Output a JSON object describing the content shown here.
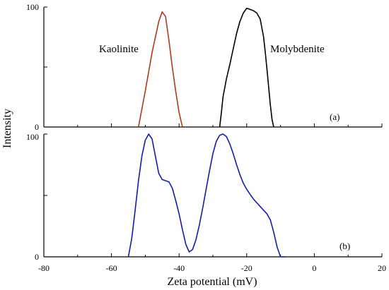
{
  "chart_data": [
    {
      "type": "line",
      "panel_label": "(a)",
      "xlim": [
        -80,
        20
      ],
      "ylim": [
        0,
        100
      ],
      "ytick_labels": [
        "0",
        "100"
      ],
      "annotations": [
        "Kaolinite",
        "Molybdenite"
      ],
      "series": [
        {
          "color": "#b03a1e",
          "x": [
            -52,
            -50,
            -48,
            -46,
            -45,
            -44,
            -43,
            -42,
            -41,
            -40,
            -39
          ],
          "y": [
            0,
            30,
            62,
            88,
            96,
            92,
            72,
            50,
            30,
            12,
            0
          ]
        },
        {
          "color": "#000000",
          "x": [
            -28,
            -27.5,
            -27,
            -26,
            -25,
            -24,
            -23,
            -22,
            -21,
            -20,
            -19,
            -18,
            -17,
            -16,
            -15,
            -14.5,
            -14,
            -13.5,
            -13,
            -12.5,
            -12
          ],
          "y": [
            0,
            12,
            25,
            40,
            52,
            65,
            78,
            88,
            95,
            99,
            98,
            97,
            95,
            90,
            75,
            62,
            48,
            33,
            18,
            6,
            0
          ]
        }
      ]
    },
    {
      "type": "line",
      "panel_label": "(b)",
      "xlim": [
        -80,
        20
      ],
      "ylim": [
        0,
        100
      ],
      "ytick_labels": [
        "0",
        "100"
      ],
      "series": [
        {
          "color": "#1a1aa8",
          "x": [
            -55,
            -54,
            -53,
            -52,
            -51,
            -50,
            -49,
            -48,
            -47,
            -46,
            -45,
            -44,
            -43,
            -42,
            -41,
            -40,
            -39,
            -38,
            -37,
            -36,
            -35,
            -34,
            -33,
            -32,
            -31,
            -30,
            -29,
            -28,
            -27,
            -26,
            -25,
            -24,
            -23,
            -22,
            -21,
            -20,
            -19,
            -18,
            -17,
            -16,
            -15,
            -14,
            -13,
            -12,
            -11,
            -10,
            -9,
            -8.5
          ],
          "y": [
            0,
            15,
            38,
            62,
            82,
            95,
            100,
            96,
            82,
            68,
            63,
            62,
            61,
            56,
            46,
            35,
            22,
            10,
            4,
            6,
            14,
            26,
            40,
            55,
            70,
            84,
            94,
            99,
            100,
            98,
            92,
            84,
            75,
            67,
            60,
            55,
            51,
            47,
            44,
            41,
            38,
            35,
            30,
            20,
            8,
            0,
            0,
            0
          ]
        }
      ]
    }
  ],
  "x_axis": {
    "ticks": [
      -80,
      -60,
      -40,
      -20,
      0,
      20
    ],
    "tick_labels": [
      "-80",
      "-60",
      "-40",
      "-20",
      "0",
      "20"
    ],
    "label": "Zeta potential (mV)"
  },
  "y_axis": {
    "label": "Intensity"
  }
}
